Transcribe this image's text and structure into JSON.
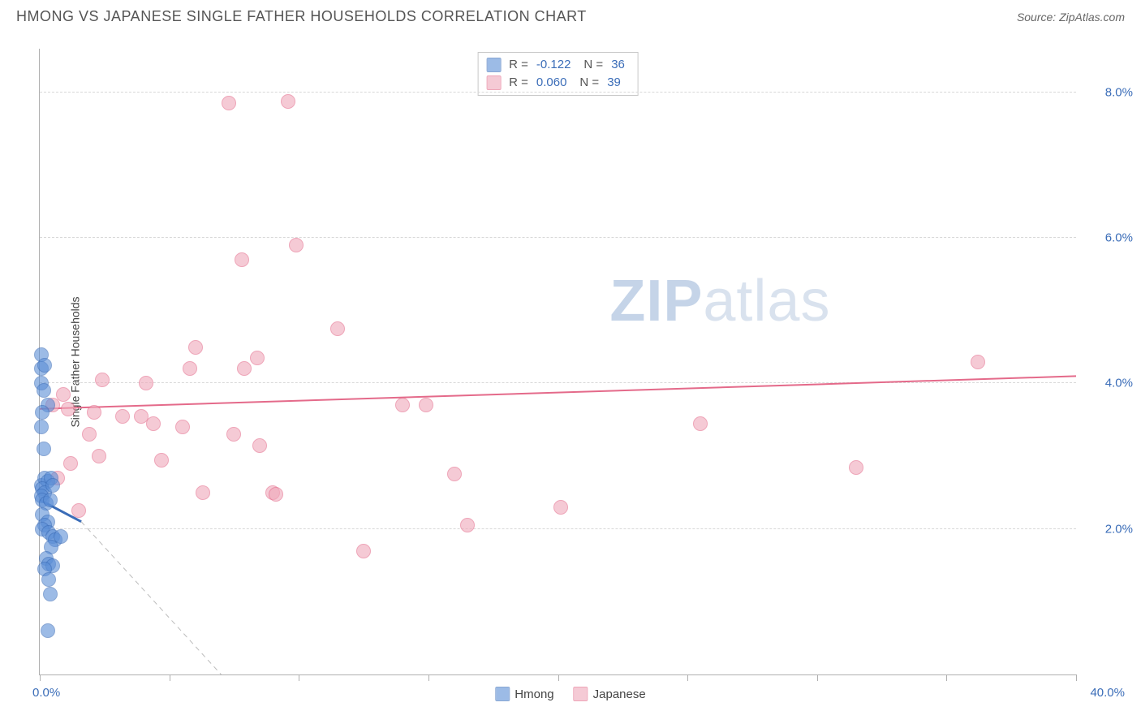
{
  "title": "HMONG VS JAPANESE SINGLE FATHER HOUSEHOLDS CORRELATION CHART",
  "source": "Source: ZipAtlas.com",
  "watermark_zip": "ZIP",
  "watermark_atlas": "atlas",
  "y_axis_label": "Single Father Households",
  "chart": {
    "type": "scatter",
    "background_color": "#ffffff",
    "grid_color": "#d8d8d8",
    "axis_color": "#b0b0b0",
    "xlim": [
      0,
      40
    ],
    "ylim": [
      0,
      8.6
    ],
    "x_tick_step": 5,
    "x_label_min": "0.0%",
    "x_label_max": "40.0%",
    "y_ticks": [
      2.0,
      4.0,
      6.0,
      8.0
    ],
    "y_tick_labels": [
      "2.0%",
      "4.0%",
      "6.0%",
      "8.0%"
    ],
    "marker_radius": 9,
    "marker_fill_opacity": 0.35,
    "series": {
      "hmong": {
        "label": "Hmong",
        "color": "#5b8ed6",
        "border_color": "#3b6db8",
        "R": "-0.122",
        "N": "36",
        "trend": {
          "x1": 0,
          "y1": 2.4,
          "x2": 1.6,
          "y2": 2.1,
          "width": 3
        },
        "trend_extrapolate": {
          "x1": 1.6,
          "y1": 2.1,
          "x2": 7.0,
          "y2": 0.0
        },
        "points": [
          [
            0.05,
            4.4
          ],
          [
            0.05,
            4.2
          ],
          [
            0.05,
            4.0
          ],
          [
            0.2,
            4.25
          ],
          [
            0.15,
            3.9
          ],
          [
            0.3,
            3.7
          ],
          [
            0.1,
            3.6
          ],
          [
            0.05,
            2.6
          ],
          [
            0.2,
            2.7
          ],
          [
            0.3,
            2.65
          ],
          [
            0.1,
            2.55
          ],
          [
            0.2,
            2.5
          ],
          [
            0.05,
            2.45
          ],
          [
            0.1,
            2.4
          ],
          [
            0.25,
            2.35
          ],
          [
            0.45,
            2.7
          ],
          [
            0.5,
            2.6
          ],
          [
            0.4,
            2.4
          ],
          [
            0.1,
            2.2
          ],
          [
            0.3,
            2.1
          ],
          [
            0.2,
            2.05
          ],
          [
            0.1,
            2.0
          ],
          [
            0.35,
            1.95
          ],
          [
            0.5,
            1.9
          ],
          [
            0.6,
            1.85
          ],
          [
            0.8,
            1.9
          ],
          [
            0.45,
            1.75
          ],
          [
            0.25,
            1.6
          ],
          [
            0.35,
            1.52
          ],
          [
            0.5,
            1.5
          ],
          [
            0.2,
            1.45
          ],
          [
            0.4,
            1.1
          ],
          [
            0.35,
            1.3
          ],
          [
            0.3,
            0.6
          ],
          [
            0.05,
            3.4
          ],
          [
            0.15,
            3.1
          ]
        ]
      },
      "japanese": {
        "label": "Japanese",
        "color": "#f0a8ba",
        "border_color": "#e46a8a",
        "R": "0.060",
        "N": "39",
        "trend": {
          "x1": 0,
          "y1": 3.65,
          "x2": 40,
          "y2": 4.1,
          "width": 2
        },
        "points": [
          [
            7.3,
            7.85
          ],
          [
            9.6,
            7.87
          ],
          [
            9.9,
            5.9
          ],
          [
            7.8,
            5.7
          ],
          [
            11.5,
            4.75
          ],
          [
            6.0,
            4.5
          ],
          [
            8.4,
            4.35
          ],
          [
            5.8,
            4.2
          ],
          [
            7.9,
            4.2
          ],
          [
            4.1,
            4.0
          ],
          [
            2.4,
            4.05
          ],
          [
            0.9,
            3.85
          ],
          [
            0.5,
            3.7
          ],
          [
            1.1,
            3.65
          ],
          [
            2.1,
            3.6
          ],
          [
            3.2,
            3.55
          ],
          [
            3.9,
            3.55
          ],
          [
            1.9,
            3.3
          ],
          [
            4.4,
            3.45
          ],
          [
            5.5,
            3.4
          ],
          [
            2.3,
            3.0
          ],
          [
            4.7,
            2.95
          ],
          [
            7.5,
            3.3
          ],
          [
            6.3,
            2.5
          ],
          [
            9.0,
            2.5
          ],
          [
            9.1,
            2.48
          ],
          [
            8.5,
            3.15
          ],
          [
            1.5,
            2.25
          ],
          [
            14.9,
            3.7
          ],
          [
            16.5,
            2.05
          ],
          [
            16.0,
            2.75
          ],
          [
            20.1,
            2.3
          ],
          [
            25.5,
            3.45
          ],
          [
            31.5,
            2.85
          ],
          [
            36.2,
            4.3
          ],
          [
            14.0,
            3.7
          ],
          [
            0.7,
            2.7
          ],
          [
            12.5,
            1.7
          ],
          [
            1.2,
            2.9
          ]
        ]
      }
    }
  }
}
